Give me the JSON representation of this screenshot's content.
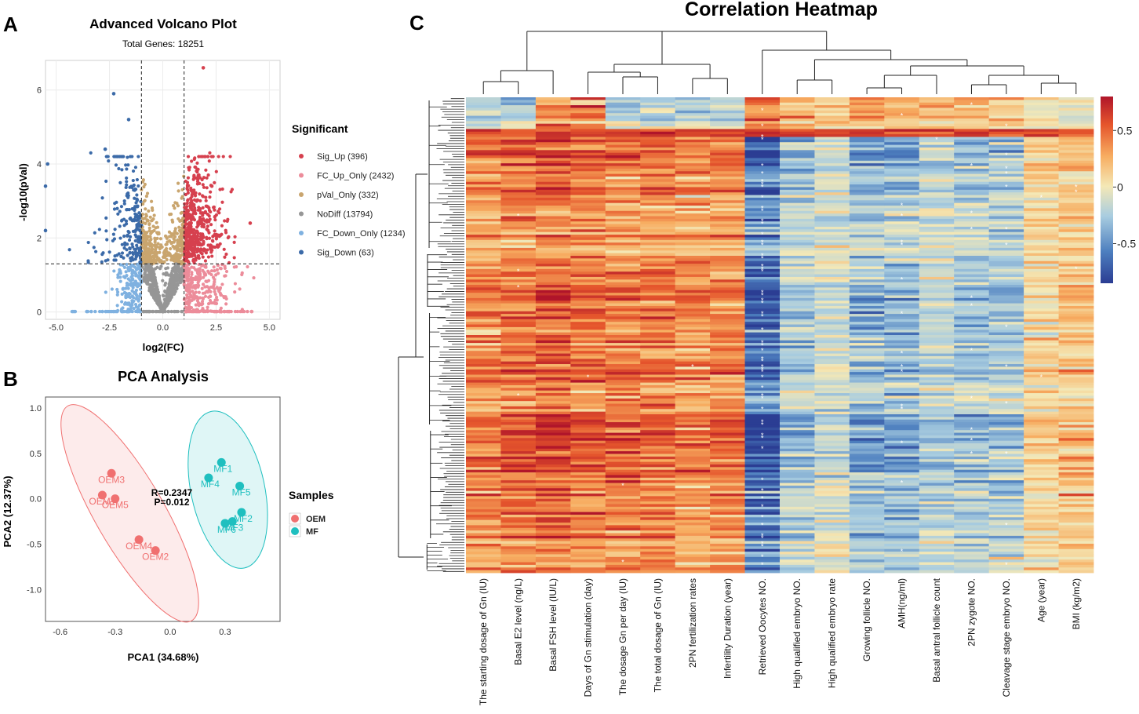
{
  "panels": {
    "a_letter": "A",
    "b_letter": "B",
    "c_letter": "C"
  },
  "chart_data": [
    {
      "type": "scatter",
      "id": "volcano",
      "title": "Advanced Volcano Plot",
      "subtitle": "Total Genes: 18251",
      "xlabel": "log2(FC)",
      "ylabel": "-log10(pVal)",
      "xlim": [
        -5.5,
        5.5
      ],
      "ylim": [
        -0.2,
        6.8
      ],
      "xticks": [
        -5.0,
        -2.5,
        0.0,
        2.5,
        5.0
      ],
      "xtick_labels": [
        "-5.0",
        "-2.5",
        "0.0",
        "2.5",
        "5.0"
      ],
      "yticks": [
        0,
        2,
        4,
        6
      ],
      "ytick_labels": [
        "0",
        "2",
        "4",
        "6"
      ],
      "thresholds": {
        "fc": [
          -1,
          1
        ],
        "pval": 1.3
      },
      "legend_title": "Significant",
      "legend_position": "right",
      "categories": [
        {
          "name": "Sig_Up",
          "label": "Sig_Up (396)",
          "count": 396,
          "color": "#d6404e"
        },
        {
          "name": "FC_Up_Only",
          "label": "FC_Up_Only (2432)",
          "count": 2432,
          "color": "#ec8c9a"
        },
        {
          "name": "pVal_Only",
          "label": "pVal_Only (332)",
          "count": 332,
          "color": "#c9a56e"
        },
        {
          "name": "NoDiff",
          "label": "NoDiff (13794)",
          "count": 13794,
          "color": "#969696"
        },
        {
          "name": "FC_Down_Only",
          "label": "FC_Down_Only (1234)",
          "count": 1234,
          "color": "#7fb1e0"
        },
        {
          "name": "Sig_Down",
          "label": "Sig_Down (63)",
          "count": 63,
          "color": "#3b6aa8"
        }
      ],
      "highlight_points": [
        {
          "x": 1.9,
          "y": 6.6,
          "cat": "Sig_Up"
        },
        {
          "x": -2.3,
          "y": 5.9,
          "cat": "Sig_Down"
        },
        {
          "x": -1.6,
          "y": 5.2,
          "cat": "Sig_Down"
        },
        {
          "x": -5.4,
          "y": 4.0,
          "cat": "Sig_Down"
        },
        {
          "x": -2.7,
          "y": 4.4,
          "cat": "Sig_Down"
        },
        {
          "x": -5.5,
          "y": 3.4,
          "cat": "Sig_Down"
        },
        {
          "x": 2.3,
          "y": 3.4,
          "cat": "Sig_Up"
        },
        {
          "x": 4.1,
          "y": 2.4,
          "cat": "Sig_Up"
        },
        {
          "x": -5.5,
          "y": 2.2,
          "cat": "Sig_Down"
        }
      ]
    },
    {
      "type": "scatter",
      "id": "pca",
      "title": "PCA Analysis",
      "xlabel": "PCA1 (34.68%)",
      "ylabel": "PCA2 (12.37%)",
      "xlim": [
        -0.68,
        0.6
      ],
      "ylim": [
        -1.35,
        1.12
      ],
      "xticks": [
        -0.6,
        -0.3,
        0.0,
        0.3
      ],
      "xtick_labels": [
        "-0.6",
        "-0.3",
        "0.0",
        "0.3"
      ],
      "yticks": [
        1.0,
        0.5,
        0.0,
        -0.5,
        -1.0
      ],
      "ytick_labels": [
        "1.0",
        "0.5",
        "0.0",
        "-0.5",
        "-1.0"
      ],
      "annotation": [
        "R=0.2347",
        "P=0.012"
      ],
      "legend_title": "Samples",
      "legend_position": "right",
      "series": [
        {
          "name": "OEM",
          "color": "#f07070",
          "points": [
            {
              "label": "OEM3",
              "x": -0.32,
              "y": 0.28
            },
            {
              "label": "OEM1",
              "x": -0.37,
              "y": 0.04
            },
            {
              "label": "OEM5",
              "x": -0.3,
              "y": 0.0
            },
            {
              "label": "OEM4",
              "x": -0.17,
              "y": -0.45
            },
            {
              "label": "OEM2",
              "x": -0.08,
              "y": -0.57
            }
          ]
        },
        {
          "name": "MF",
          "color": "#1fbfbf",
          "points": [
            {
              "label": "MF1",
              "x": 0.28,
              "y": 0.4
            },
            {
              "label": "MF4",
              "x": 0.21,
              "y": 0.23
            },
            {
              "label": "MF5",
              "x": 0.38,
              "y": 0.14
            },
            {
              "label": "MF2",
              "x": 0.39,
              "y": -0.15
            },
            {
              "label": "MF3",
              "x": 0.34,
              "y": -0.25
            },
            {
              "label": "MF6",
              "x": 0.3,
              "y": -0.27
            }
          ]
        }
      ]
    },
    {
      "type": "heatmap",
      "id": "heatmap",
      "title": "Correlation Heatmap",
      "columns": [
        "The starting dosage of Gn (IU)",
        "Basal E2 level (ng/L)",
        "Basal FSH level (IU/L)",
        "Days of Gn stimulation (day)",
        "The dosage Gn per day (IU)",
        "The total dosage of Gn (IU)",
        "2PN fertilization rates",
        "Infertility Duration (year)",
        "Retrieved Oocytes NO.",
        "High qualified embryo NO.",
        "High qualified embryo rate",
        "Growing follicle NO.",
        "AMH(ng/ml)",
        "Basal antral follicle count",
        "2PN zygote NO.",
        "Cleavage stage embryo NO.",
        "Age (year)",
        "BMI (kg/m2)"
      ],
      "column_mean_correlation": [
        0.25,
        0.3,
        0.35,
        0.3,
        0.28,
        0.28,
        0.22,
        0.25,
        -0.45,
        -0.2,
        -0.1,
        -0.25,
        -0.25,
        -0.15,
        -0.2,
        -0.2,
        0.05,
        0.1
      ],
      "colorbar": {
        "ticks": [
          0.5,
          0,
          -0.5
        ],
        "tick_labels": [
          "0.5",
          "0",
          "-0.5"
        ],
        "range": [
          -0.85,
          0.8
        ],
        "colors": [
          "#2b3d93",
          "#4d7fbf",
          "#a9cde0",
          "#f4e8b6",
          "#f7ad61",
          "#e5552c",
          "#b0152a"
        ]
      },
      "significance_marker": "*"
    }
  ]
}
